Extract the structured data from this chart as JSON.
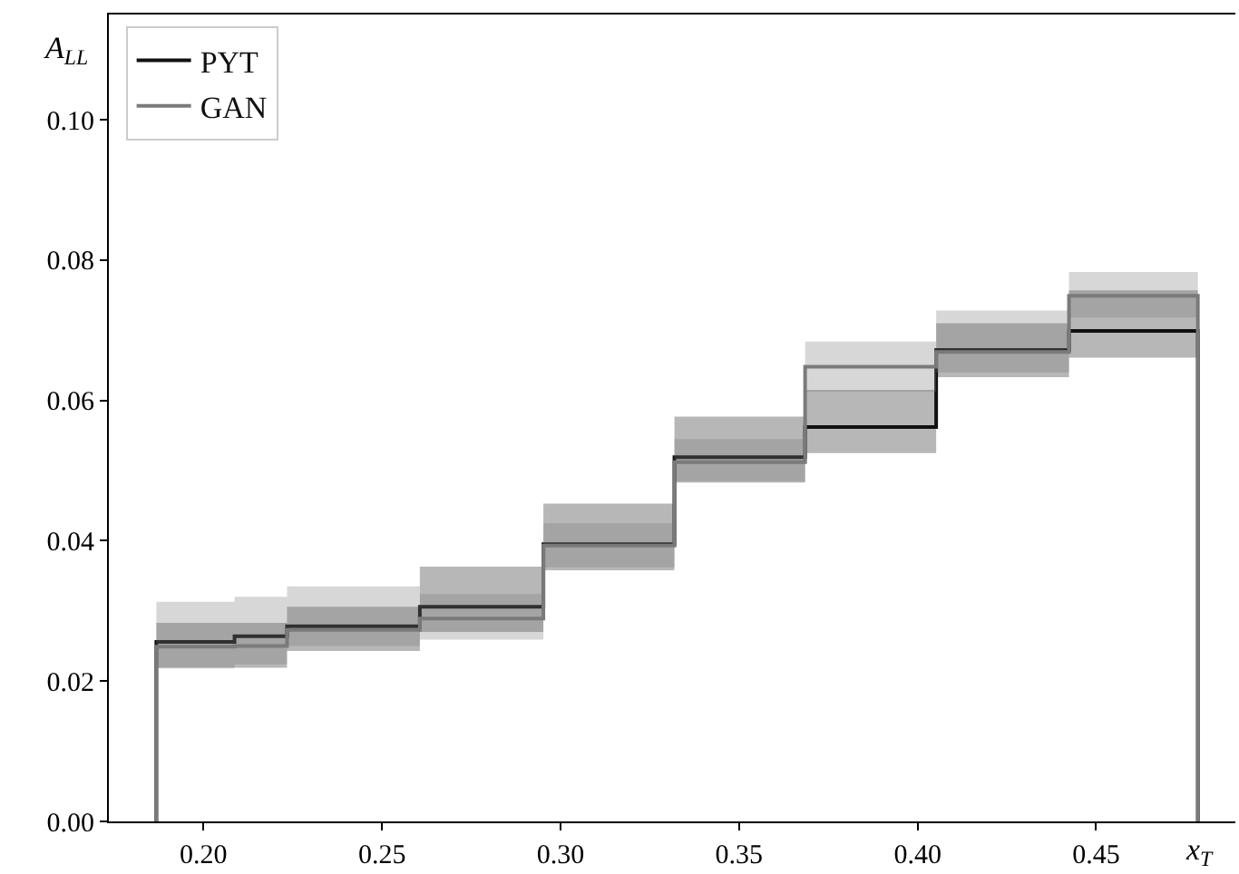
{
  "chart_data": {
    "type": "step",
    "xlabel": "x$_{T}$",
    "ylabel": "A$_{LL}$",
    "x": [
      0.1868,
      0.1868,
      0.2087,
      0.2234,
      0.2606,
      0.2952,
      0.3319,
      0.3685,
      0.4052,
      0.4424,
      0.4785,
      0.4785
    ],
    "series": [
      {
        "name": "PYT",
        "color": "#111111",
        "values": [
          0,
          0.0256,
          0.0264,
          0.0278,
          0.0306,
          0.0395,
          0.0519,
          0.0562,
          0.0672,
          0.0699,
          0.0699,
          0
        ],
        "lower": [
          null,
          0.0219,
          0.0219,
          0.0243,
          0.027,
          0.0358,
          0.0483,
          0.0525,
          0.0633,
          0.0661,
          0.0661,
          null
        ],
        "upper": [
          null,
          0.0283,
          0.0283,
          0.0306,
          0.0363,
          0.0453,
          0.0577,
          0.0615,
          0.071,
          0.0757,
          0.0757,
          null
        ]
      },
      {
        "name": "GAN",
        "color": "#7a7a7a",
        "values": [
          0,
          0.0249,
          0.025,
          0.0273,
          0.0289,
          0.0393,
          0.0512,
          0.0648,
          0.0669,
          0.0749,
          0.0749,
          0
        ],
        "lower": [
          null,
          0.0218,
          0.0224,
          0.025,
          0.0259,
          0.0362,
          0.0485,
          0.0612,
          0.064,
          0.0718,
          0.0718,
          null
        ],
        "upper": [
          null,
          0.0313,
          0.032,
          0.0335,
          0.0324,
          0.0425,
          0.0545,
          0.0684,
          0.0728,
          0.0783,
          0.0783,
          null
        ]
      }
    ],
    "xlim": [
      0.1735,
      0.489
    ],
    "ylim": [
      0,
      0.115
    ],
    "xticks": [
      {
        "value": 0.2,
        "label": "0.20"
      },
      {
        "value": 0.25,
        "label": "0.25"
      },
      {
        "value": 0.3,
        "label": "0.30"
      },
      {
        "value": 0.35,
        "label": "0.35"
      },
      {
        "value": 0.4,
        "label": "0.40"
      },
      {
        "value": 0.45,
        "label": "0.45"
      }
    ],
    "yticks": [
      {
        "value": 0,
        "label": "0.00"
      },
      {
        "value": 0.02,
        "label": "0.02"
      },
      {
        "value": 0.04,
        "label": "0.04"
      },
      {
        "value": 0.06,
        "label": "0.06"
      },
      {
        "value": 0.08,
        "label": "0.08"
      },
      {
        "value": 0.1,
        "label": "0.10"
      }
    ],
    "grid": false,
    "legend": "top left"
  }
}
